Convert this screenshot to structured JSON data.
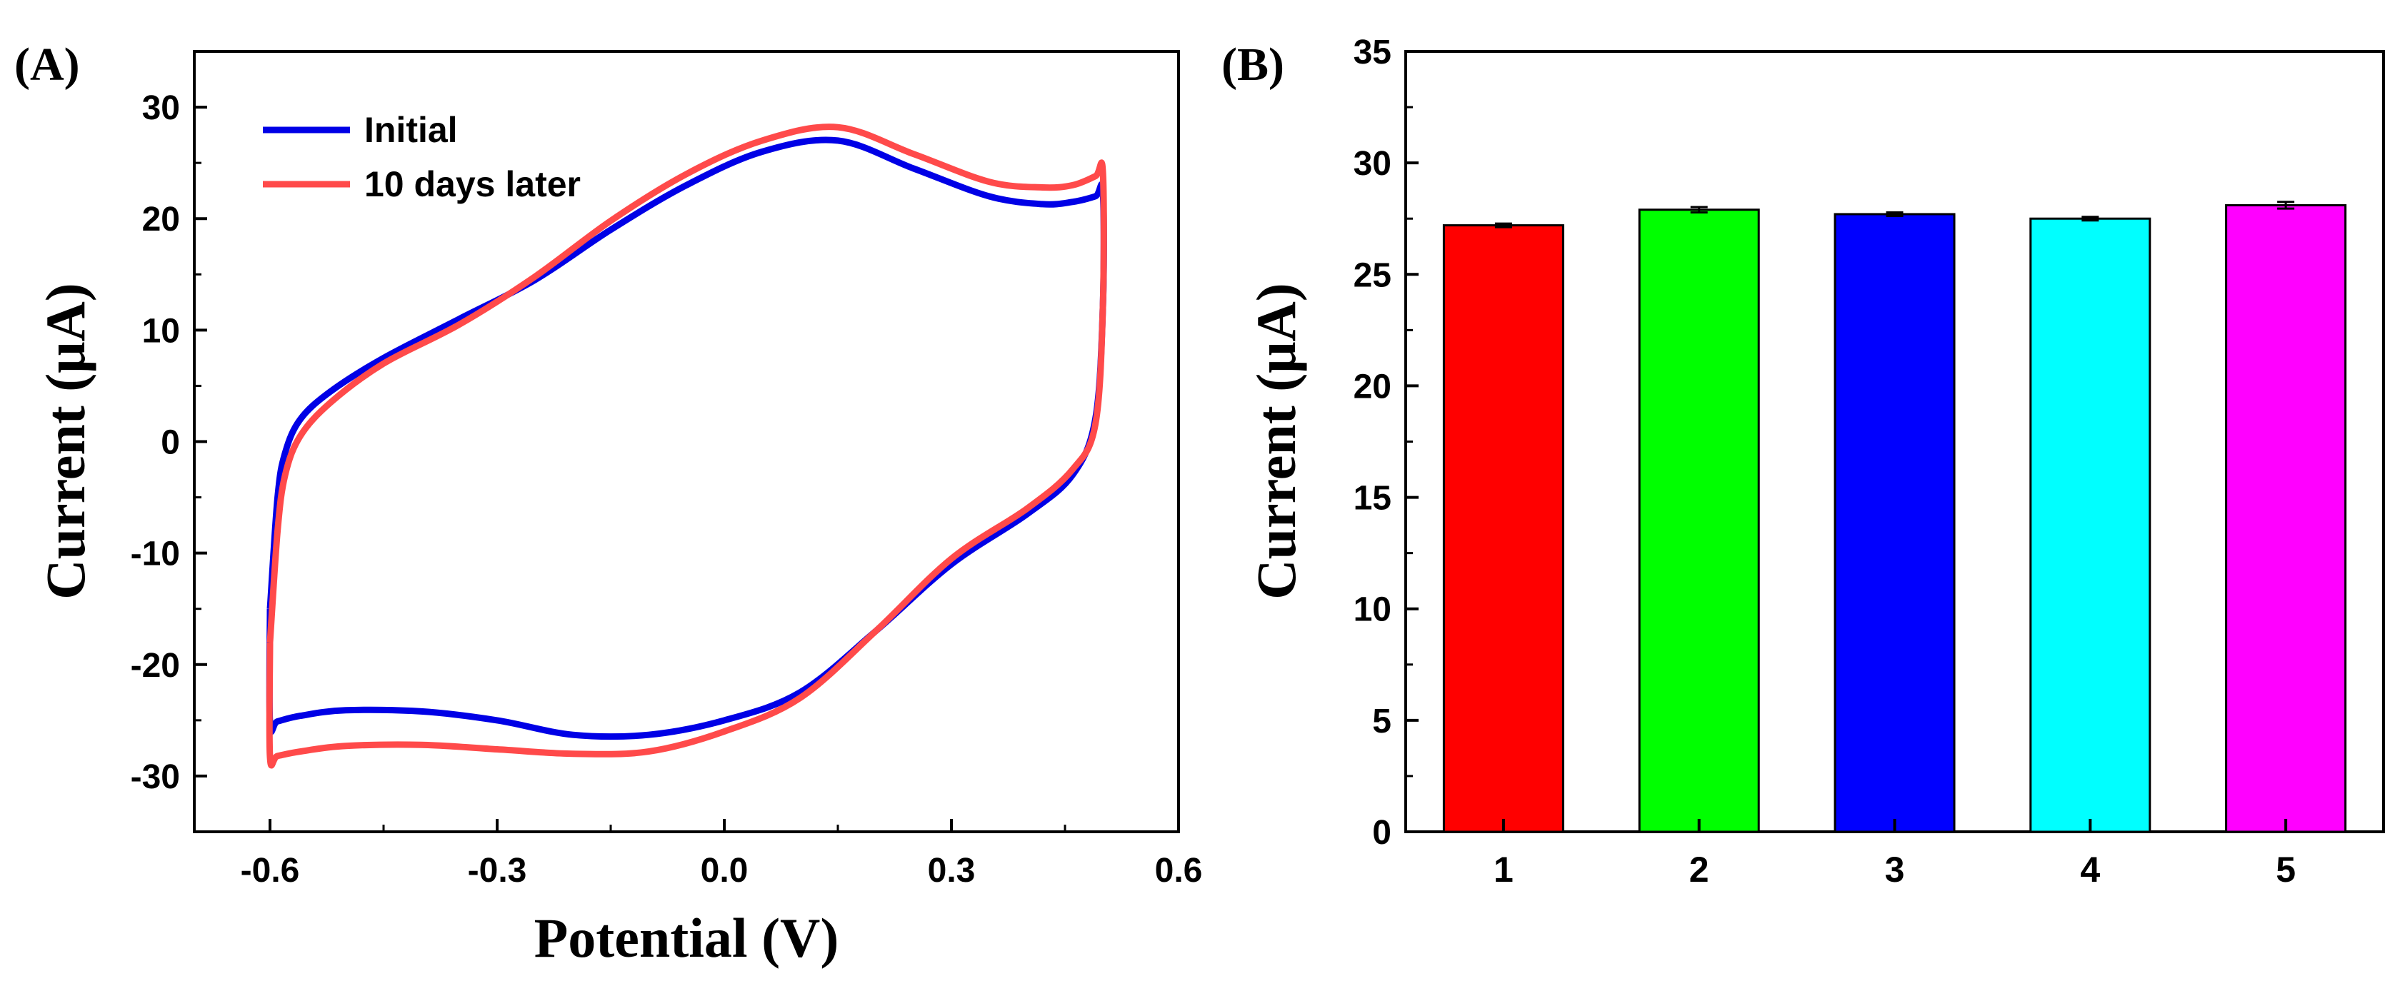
{
  "chart_data": [
    {
      "panel_label": "(A)",
      "type": "line",
      "xlabel": "Potential (V)",
      "ylabel": "Current (μA)",
      "xlim": [
        -0.7,
        0.6
      ],
      "ylim": [
        -35,
        35
      ],
      "xticks": [
        "-0.6",
        "-0.3",
        "0.0",
        "0.3",
        "0.6"
      ],
      "xtick_values": [
        -0.6,
        -0.3,
        0.0,
        0.3,
        0.6
      ],
      "yticks": [
        "-30",
        "-20",
        "-10",
        "0",
        "10",
        "20",
        "30"
      ],
      "ytick_values": [
        -30,
        -20,
        -10,
        0,
        10,
        20,
        30
      ],
      "legend_position": "top-left",
      "grid": false,
      "series": [
        {
          "name": "Initial",
          "color": "#0000e6",
          "x": [
            -0.6,
            -0.59,
            -0.58,
            -0.56,
            -0.52,
            -0.45,
            -0.35,
            -0.25,
            -0.15,
            -0.05,
            0.05,
            0.15,
            0.25,
            0.35,
            0.42,
            0.46,
            0.49,
            0.5,
            0.5,
            0.49,
            0.46,
            0.4,
            0.3,
            0.2,
            0.1,
            0.0,
            -0.1,
            -0.2,
            -0.3,
            -0.4,
            -0.5,
            -0.56,
            -0.59,
            -0.6,
            -0.6
          ],
          "y": [
            -15.0,
            -5.0,
            -1.0,
            2.0,
            4.5,
            7.5,
            11.0,
            14.5,
            19.0,
            23.0,
            26.0,
            27.0,
            24.5,
            22.0,
            21.3,
            21.5,
            22.0,
            22.4,
            12.0,
            2.0,
            -3.0,
            -6.5,
            -11.0,
            -17.0,
            -22.5,
            -25.0,
            -26.3,
            -26.3,
            -25.0,
            -24.2,
            -24.1,
            -24.6,
            -25.1,
            -25.3,
            -15.0
          ]
        },
        {
          "name": "10 days later",
          "color": "#ff4a4a",
          "x": [
            -0.6,
            -0.59,
            -0.58,
            -0.56,
            -0.52,
            -0.45,
            -0.35,
            -0.25,
            -0.15,
            -0.05,
            0.05,
            0.15,
            0.25,
            0.35,
            0.42,
            0.46,
            0.49,
            0.5,
            0.5,
            0.49,
            0.46,
            0.4,
            0.3,
            0.2,
            0.1,
            0.0,
            -0.1,
            -0.2,
            -0.3,
            -0.4,
            -0.5,
            -0.56,
            -0.59,
            -0.6,
            -0.6
          ],
          "y": [
            -18.0,
            -8.0,
            -3.0,
            0.5,
            3.5,
            7.0,
            10.5,
            14.8,
            19.8,
            24.0,
            27.0,
            28.2,
            25.8,
            23.3,
            22.8,
            23.0,
            23.8,
            24.2,
            12.0,
            1.5,
            -2.5,
            -6.0,
            -10.5,
            -17.0,
            -23.0,
            -26.0,
            -27.8,
            -28.0,
            -27.6,
            -27.2,
            -27.3,
            -27.8,
            -28.2,
            -28.3,
            -18.0
          ]
        }
      ]
    },
    {
      "panel_label": "(B)",
      "type": "bar",
      "xlabel": "",
      "ylabel": "Current (μA)",
      "categories": [
        "1",
        "2",
        "3",
        "4",
        "5"
      ],
      "values": [
        27.2,
        27.9,
        27.7,
        27.5,
        28.1
      ],
      "errors": [
        0.08,
        0.12,
        0.08,
        0.08,
        0.15
      ],
      "colors": [
        "#ff0000",
        "#00ff00",
        "#0000ff",
        "#00ffff",
        "#ff00ff"
      ],
      "ylim": [
        0,
        35
      ],
      "yticks": [
        "0",
        "5",
        "10",
        "15",
        "20",
        "25",
        "30",
        "35"
      ],
      "ytick_values": [
        0,
        5,
        10,
        15,
        20,
        25,
        30,
        35
      ],
      "grid": false
    }
  ]
}
